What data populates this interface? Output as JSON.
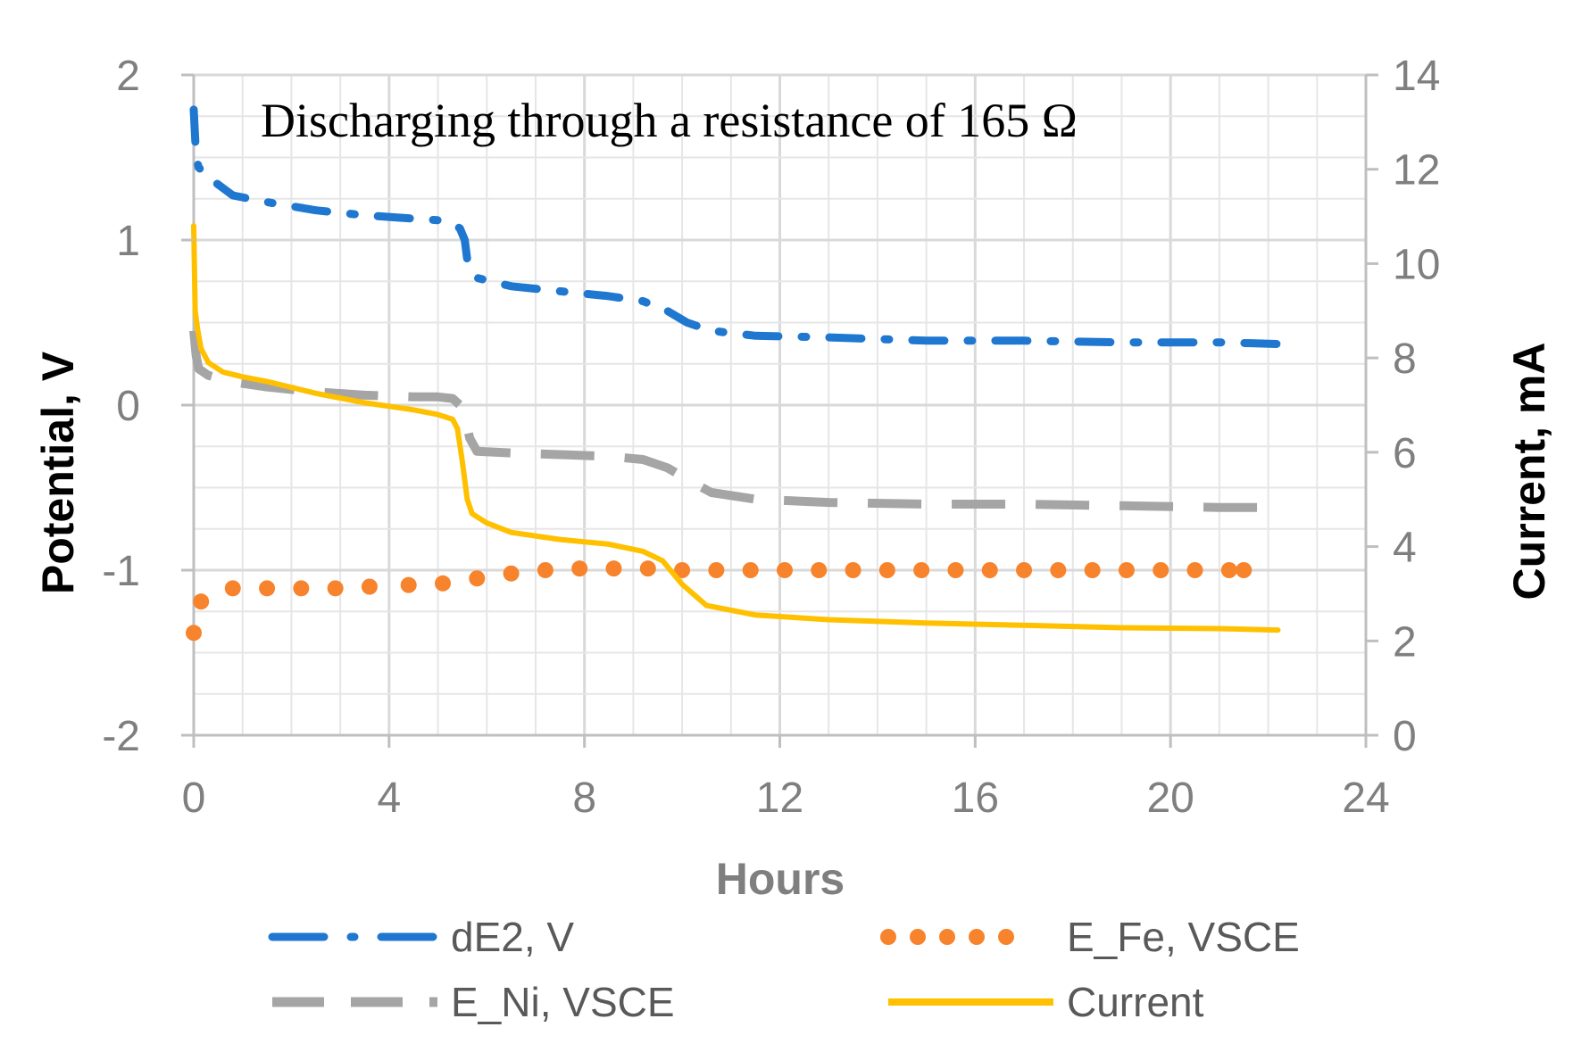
{
  "chart_data": {
    "type": "line",
    "title": "Discharging through a resistance of 165 Ω",
    "xlabel": "Hours",
    "ylabel_left": "Potential, V",
    "ylabel_right": "Current, mA",
    "xlim": [
      0,
      24
    ],
    "ylim_left": [
      -2,
      2
    ],
    "ylim_right": [
      0,
      14
    ],
    "x_ticks": [
      0,
      4,
      8,
      12,
      16,
      20,
      24
    ],
    "y_left_ticks": [
      -2,
      -1,
      0,
      1,
      2
    ],
    "y_right_ticks": [
      0,
      2,
      4,
      6,
      8,
      10,
      12,
      14
    ],
    "grid": true,
    "legend_position": "bottom",
    "series": [
      {
        "name": "dE2, V",
        "axis": "left",
        "color": "#1f77d0",
        "style": "dash-dot",
        "x": [
          0,
          0.05,
          0.1,
          0.3,
          0.8,
          1.5,
          2.5,
          3.5,
          4.5,
          5.0,
          5.3,
          5.45,
          5.55,
          5.6,
          5.8,
          6.5,
          7.5,
          8.5,
          9.2,
          9.7,
          10.1,
          10.6,
          11.5,
          13,
          15,
          17,
          19,
          21,
          22.2
        ],
        "y": [
          1.79,
          1.5,
          1.44,
          1.38,
          1.27,
          1.23,
          1.18,
          1.15,
          1.13,
          1.12,
          1.1,
          1.07,
          1.0,
          0.88,
          0.77,
          0.72,
          0.69,
          0.66,
          0.63,
          0.57,
          0.5,
          0.45,
          0.42,
          0.41,
          0.39,
          0.39,
          0.38,
          0.38,
          0.37
        ]
      },
      {
        "name": "E_Ni, VSCE",
        "axis": "left",
        "color": "#a5a5a5",
        "style": "dash",
        "x": [
          0,
          0.05,
          0.1,
          0.3,
          0.8,
          1.5,
          2.5,
          3.5,
          4.5,
          5.0,
          5.3,
          5.45,
          5.55,
          5.65,
          5.8,
          6.5,
          7.5,
          8.5,
          9.2,
          9.7,
          10.1,
          10.6,
          11.5,
          13,
          15,
          17,
          19,
          21,
          22.2
        ],
        "y": [
          0.45,
          0.3,
          0.22,
          0.18,
          0.14,
          0.11,
          0.08,
          0.06,
          0.05,
          0.05,
          0.04,
          0.0,
          -0.06,
          -0.2,
          -0.28,
          -0.29,
          -0.3,
          -0.31,
          -0.33,
          -0.38,
          -0.45,
          -0.53,
          -0.57,
          -0.59,
          -0.6,
          -0.6,
          -0.61,
          -0.62,
          -0.62
        ]
      },
      {
        "name": "E_Fe, VSCE",
        "axis": "left",
        "color": "#f7832c",
        "style": "dot",
        "x": [
          0,
          0.15,
          0.8,
          1.5,
          2.2,
          2.9,
          3.6,
          4.4,
          5.1,
          5.8,
          6.5,
          7.2,
          7.9,
          8.6,
          9.3,
          10.0,
          10.7,
          11.4,
          12.1,
          12.8,
          13.5,
          14.2,
          14.9,
          15.6,
          16.3,
          17.0,
          17.7,
          18.4,
          19.1,
          19.8,
          20.5,
          21.2,
          21.5
        ],
        "y": [
          -1.38,
          -1.19,
          -1.11,
          -1.11,
          -1.11,
          -1.11,
          -1.1,
          -1.09,
          -1.08,
          -1.05,
          -1.02,
          -1.0,
          -0.99,
          -0.99,
          -0.99,
          -1.0,
          -1.0,
          -1.0,
          -1.0,
          -1.0,
          -1.0,
          -1.0,
          -1.0,
          -1.0,
          -1.0,
          -1.0,
          -1.0,
          -1.0,
          -1.0,
          -1.0,
          -1.0,
          -1.0,
          -1.0
        ]
      },
      {
        "name": "Current",
        "axis": "right",
        "color": "#ffc000",
        "style": "solid",
        "x": [
          0,
          0.03,
          0.08,
          0.15,
          0.3,
          0.6,
          1.0,
          1.5,
          2.5,
          3.5,
          4.5,
          5.0,
          5.3,
          5.4,
          5.5,
          5.6,
          5.7,
          6.0,
          6.5,
          7.5,
          8.5,
          9.2,
          9.6,
          10.0,
          10.5,
          11.5,
          13,
          15,
          17,
          19,
          21,
          22.2
        ],
        "y": [
          10.8,
          9.0,
          8.6,
          8.2,
          7.9,
          7.7,
          7.6,
          7.5,
          7.25,
          7.05,
          6.9,
          6.8,
          6.7,
          6.5,
          5.8,
          5.0,
          4.7,
          4.5,
          4.3,
          4.15,
          4.05,
          3.9,
          3.7,
          3.2,
          2.75,
          2.55,
          2.45,
          2.38,
          2.33,
          2.28,
          2.26,
          2.23
        ]
      }
    ]
  }
}
